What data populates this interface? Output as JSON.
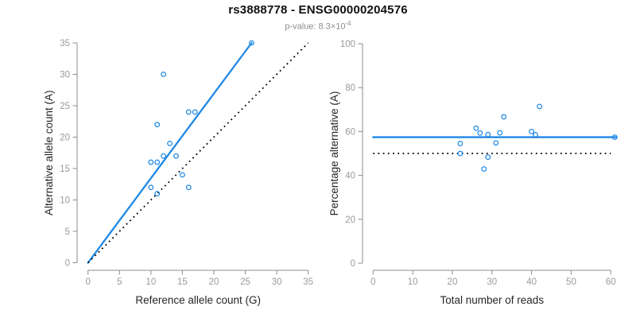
{
  "header": {
    "title": "rs3888778 - ENSG00000204576",
    "pvalue_prefix": "p-value: 8.3×10",
    "pvalue_exponent": "-4"
  },
  "colors": {
    "accent": "#1e88e5",
    "dotted_line": "#000000",
    "axis": "#8c8c8c",
    "tick_label": "#9a9a9a",
    "axis_title": "#262626"
  },
  "chart_data": [
    {
      "type": "scatter",
      "name": "allele-counts-plot",
      "xlabel": "Reference allele count (G)",
      "ylabel": "Alternative allele count (A)",
      "xlim": [
        0,
        35
      ],
      "ylim": [
        0,
        35
      ],
      "xticks": [
        0,
        5,
        10,
        15,
        20,
        25,
        30,
        35
      ],
      "yticks": [
        0,
        5,
        10,
        15,
        20,
        25,
        30,
        35
      ],
      "grid": false,
      "points": [
        [
          10,
          12
        ],
        [
          10,
          16
        ],
        [
          11,
          11
        ],
        [
          11,
          16
        ],
        [
          11,
          22
        ],
        [
          12,
          17
        ],
        [
          12,
          30
        ],
        [
          13,
          19
        ],
        [
          14,
          17
        ],
        [
          15,
          14
        ],
        [
          16,
          12
        ],
        [
          16,
          24
        ],
        [
          17,
          24
        ],
        [
          26,
          35
        ]
      ],
      "lines": [
        {
          "name": "fit-line",
          "style": "solid",
          "color": "#1e88e5",
          "from": [
            0,
            0
          ],
          "to": [
            26,
            35
          ]
        },
        {
          "name": "identity-line",
          "style": "dotted",
          "color": "#000000",
          "from": [
            0,
            0
          ],
          "to": [
            35,
            35
          ]
        }
      ]
    },
    {
      "type": "scatter",
      "name": "percentage-vs-reads-plot",
      "xlabel": "Total number of reads",
      "ylabel": "Percentage alternative (A)",
      "xlim": [
        0,
        62
      ],
      "ylim": [
        0,
        100
      ],
      "xticks": [
        0,
        10,
        20,
        30,
        40,
        50,
        60
      ],
      "yticks": [
        0,
        20,
        40,
        60,
        80,
        100
      ],
      "grid": false,
      "points": [
        [
          22,
          54.5
        ],
        [
          22,
          50.0
        ],
        [
          26,
          61.5
        ],
        [
          27,
          59.3
        ],
        [
          28,
          42.9
        ],
        [
          29,
          58.6
        ],
        [
          29,
          48.3
        ],
        [
          31,
          54.8
        ],
        [
          32,
          59.4
        ],
        [
          33,
          66.7
        ],
        [
          40,
          60.0
        ],
        [
          41,
          58.5
        ],
        [
          42,
          71.4
        ],
        [
          61,
          57.4
        ]
      ],
      "lines": [
        {
          "name": "mean-percentage-line",
          "style": "solid",
          "color": "#1e88e5",
          "from": [
            0,
            57.4
          ],
          "to": [
            61.5,
            57.4
          ]
        },
        {
          "name": "fifty-percent-line",
          "style": "dotted",
          "color": "#000000",
          "from": [
            0,
            50
          ],
          "to": [
            60,
            50
          ]
        }
      ]
    }
  ]
}
